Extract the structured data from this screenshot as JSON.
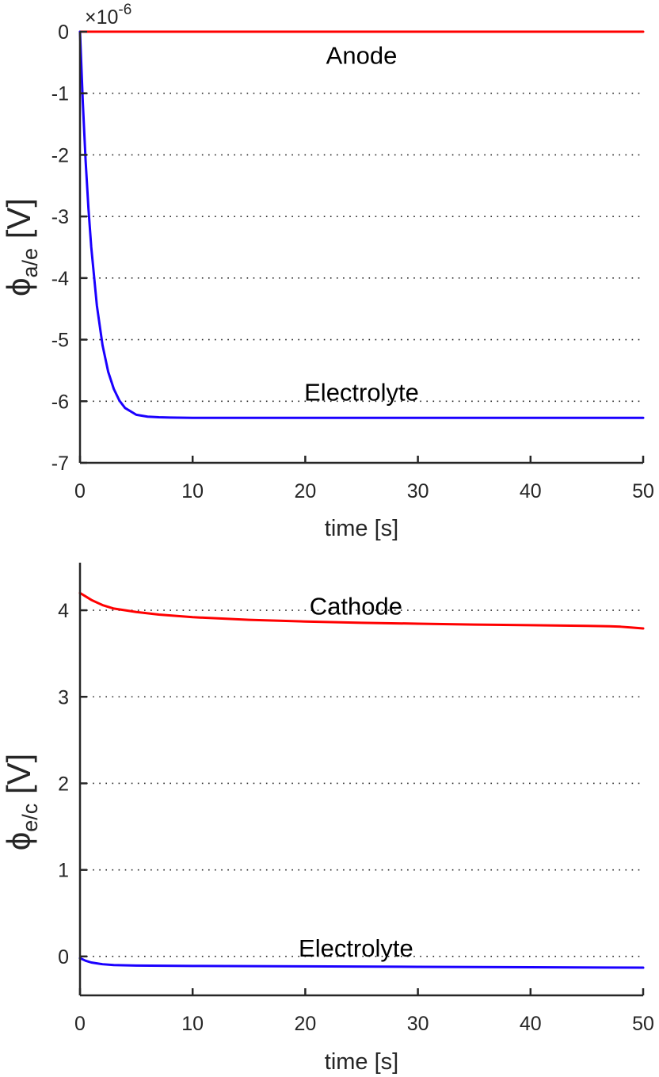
{
  "chart_data": [
    {
      "type": "line",
      "title": "",
      "xlabel": "time [s]",
      "ylabel": {
        "base": "ϕ",
        "subscript": "a/e",
        "unit": "[V]"
      },
      "y_multiplier": {
        "prefix": "×",
        "base": "10",
        "exponent": "-6"
      },
      "xlim": [
        0,
        50
      ],
      "ylim": [
        -7,
        0
      ],
      "x_ticks": [
        0,
        10,
        20,
        30,
        40,
        50
      ],
      "x_tick_labels": [
        "0",
        "10",
        "20",
        "30",
        "40",
        "50"
      ],
      "y_ticks": [
        0,
        -1,
        -2,
        -3,
        -4,
        -5,
        -6,
        -7
      ],
      "y_tick_labels": [
        "0",
        "-1",
        "-2",
        "-3",
        "-4",
        "-5",
        "-6",
        "-7"
      ],
      "y_gridlines": [
        -1,
        -2,
        -3,
        -4,
        -5,
        -6
      ],
      "grid": "horizontal dotted",
      "series": [
        {
          "color": "#ff0000",
          "x": [
            0,
            5,
            10,
            20,
            30,
            40,
            50
          ],
          "y": [
            0,
            0,
            0,
            0,
            0,
            0,
            0
          ]
        },
        {
          "color": "#1a00ff",
          "x": [
            0,
            0.25,
            0.5,
            0.75,
            1,
            1.5,
            2,
            2.5,
            3,
            3.5,
            4,
            5,
            6,
            7,
            8,
            10,
            15,
            20,
            30,
            40,
            50
          ],
          "y": [
            0,
            -1.15,
            -2.1,
            -2.87,
            -3.5,
            -4.45,
            -5.09,
            -5.52,
            -5.8,
            -5.99,
            -6.11,
            -6.22,
            -6.25,
            -6.26,
            -6.265,
            -6.27,
            -6.27,
            -6.27,
            -6.27,
            -6.27,
            -6.27
          ]
        }
      ],
      "annotations": [
        {
          "text": "Anode",
          "x": 25,
          "y": -0.38
        },
        {
          "text": "Electrolyte",
          "x": 25,
          "y": -5.85
        }
      ]
    },
    {
      "type": "line",
      "title": "",
      "xlabel": "time [s]",
      "ylabel": {
        "base": "ϕ",
        "subscript": "e/c",
        "unit": "[V]"
      },
      "xlim": [
        0,
        50
      ],
      "ylim": [
        -0.45,
        4.55
      ],
      "x_ticks": [
        0,
        10,
        20,
        30,
        40,
        50
      ],
      "x_tick_labels": [
        "0",
        "10",
        "20",
        "30",
        "40",
        "50"
      ],
      "y_ticks": [
        0,
        1,
        2,
        3,
        4
      ],
      "y_tick_labels": [
        "0",
        "1",
        "2",
        "3",
        "4"
      ],
      "y_gridlines": [
        0,
        1,
        2,
        3,
        4
      ],
      "grid": "horizontal dotted",
      "series": [
        {
          "color": "#ff0000",
          "x": [
            0,
            0.5,
            1,
            2,
            3,
            5,
            7,
            10,
            15,
            20,
            25,
            30,
            35,
            40,
            45,
            47,
            48,
            49,
            50
          ],
          "y": [
            4.2,
            4.16,
            4.12,
            4.06,
            4.02,
            3.98,
            3.95,
            3.92,
            3.89,
            3.87,
            3.855,
            3.845,
            3.835,
            3.828,
            3.82,
            3.815,
            3.81,
            3.8,
            3.79
          ]
        },
        {
          "color": "#1a00ff",
          "x": [
            0,
            0.5,
            1,
            2,
            3,
            5,
            10,
            20,
            30,
            40,
            50
          ],
          "y": [
            -0.02,
            -0.05,
            -0.07,
            -0.09,
            -0.1,
            -0.105,
            -0.11,
            -0.115,
            -0.12,
            -0.125,
            -0.13
          ]
        }
      ],
      "annotations": [
        {
          "text": "Cathode",
          "x": 24.5,
          "y": 4.05
        },
        {
          "text": "Electrolyte",
          "x": 24.5,
          "y": 0.1
        }
      ]
    }
  ]
}
